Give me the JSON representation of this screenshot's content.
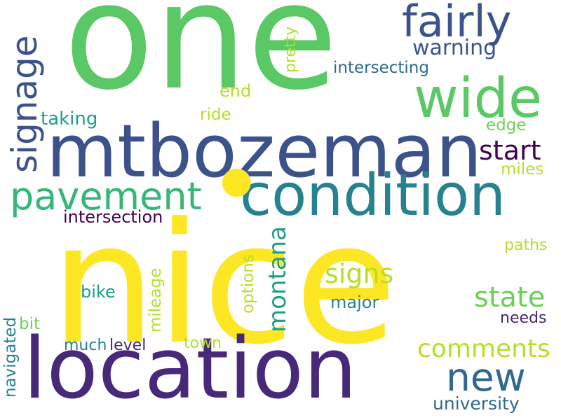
{
  "words": {
    "one": {
      "text": "one",
      "color": "#5ac864"
    },
    "nice": {
      "text": "nice",
      "color": "#fde725"
    },
    "location": {
      "text": "location",
      "color": "#482878"
    },
    "mtbozeman": {
      "text": "mtbozeman",
      "color": "#3b528b"
    },
    "condition": {
      "text": "condition",
      "color": "#26828e"
    },
    "wide": {
      "text": "wide",
      "color": "#5ac864"
    },
    "fairly": {
      "text": "fairly",
      "color": "#3b528b"
    },
    "pavement": {
      "text": "pavement",
      "color": "#35b779"
    },
    "signage": {
      "text": "signage",
      "color": "#3b528b"
    },
    "new": {
      "text": "new",
      "color": "#31688e"
    },
    "warning": {
      "text": "warning",
      "color": "#3b528b"
    },
    "comments": {
      "text": "comments",
      "color": "#b5de2b"
    },
    "start": {
      "text": "start",
      "color": "#440154"
    },
    "signs": {
      "text": "signs",
      "color": "#b5de2b"
    },
    "state": {
      "text": "state",
      "color": "#6ece58"
    },
    "montana": {
      "text": "montana",
      "color": "#1f9e89"
    },
    "intersection": {
      "text": "intersection",
      "color": "#440154"
    },
    "intersecting": {
      "text": "intersecting",
      "color": "#31688e"
    },
    "taking": {
      "text": "taking",
      "color": "#1f9e89"
    },
    "university": {
      "text": "university",
      "color": "#31688e"
    },
    "end": {
      "text": "end",
      "color": "#b5de2b"
    },
    "ride": {
      "text": "ride",
      "color": "#b5de2b"
    },
    "edge": {
      "text": "edge",
      "color": "#6ece58"
    },
    "miles": {
      "text": "miles",
      "color": "#b5de2b"
    },
    "pretty": {
      "text": "pretty",
      "color": "#b5de2b"
    },
    "paths": {
      "text": "paths",
      "color": "#b5de2b"
    },
    "options": {
      "text": "options",
      "color": "#b5de2b"
    },
    "mileage": {
      "text": "mileage",
      "color": "#b5de2b"
    },
    "bike": {
      "text": "bike",
      "color": "#1f9e89"
    },
    "major": {
      "text": "major",
      "color": "#26828e"
    },
    "needs": {
      "text": "needs",
      "color": "#482878"
    },
    "bit": {
      "text": "bit",
      "color": "#6ece58"
    },
    "much": {
      "text": "much",
      "color": "#26828e"
    },
    "level": {
      "text": "level",
      "color": "#482878"
    },
    "town": {
      "text": "town",
      "color": "#b5de2b"
    },
    "navigated": {
      "text": "navigated",
      "color": "#26828e"
    },
    "dot": {
      "text": "•",
      "color": "#fde725"
    }
  }
}
